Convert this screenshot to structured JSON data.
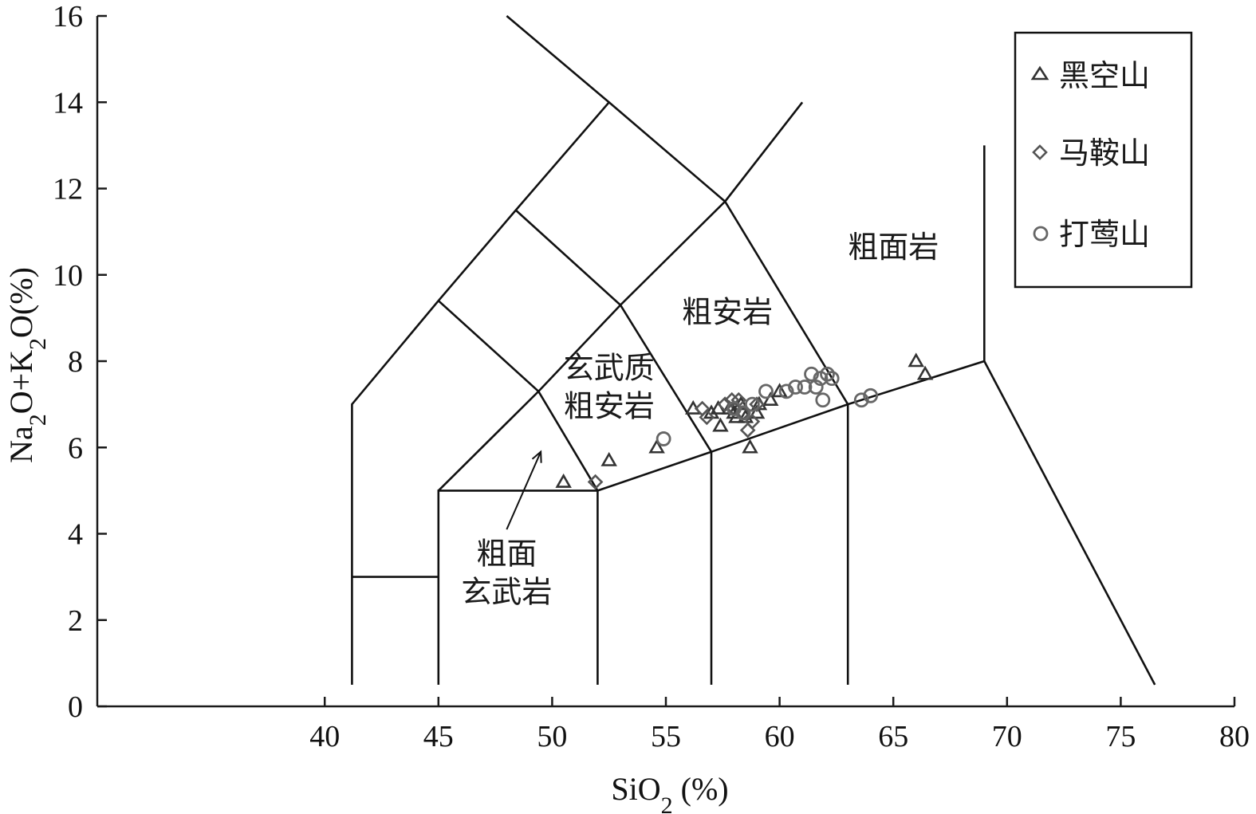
{
  "chart_data": {
    "type": "scatter",
    "xlabel_main": "SiO",
    "xlabel_sub": "2",
    "xlabel_tail": " (%)",
    "ylabel_parts": [
      "Na",
      "2",
      "O+K",
      "2",
      "O(%)"
    ],
    "xlim": [
      30,
      80
    ],
    "ylim": [
      0,
      16
    ],
    "xticks": [
      40,
      45,
      50,
      55,
      60,
      65,
      70,
      75,
      80
    ],
    "yticks": [
      0,
      2,
      4,
      6,
      8,
      10,
      12,
      14,
      16
    ],
    "grid": false,
    "legend_position": "top-right",
    "field_boundaries": [
      [
        [
          41.2,
          0.5
        ],
        [
          41.2,
          7.0
        ],
        [
          45.0,
          9.4
        ],
        [
          48.4,
          11.5
        ],
        [
          52.5,
          14.0
        ],
        [
          48.0,
          16.0
        ]
      ],
      [
        [
          41.2,
          3.0
        ],
        [
          45.0,
          3.0
        ]
      ],
      [
        [
          45.0,
          0.5
        ],
        [
          45.0,
          5.0
        ],
        [
          52.0,
          5.0
        ],
        [
          57.0,
          5.9
        ],
        [
          63.0,
          7.0
        ],
        [
          69.0,
          8.0
        ],
        [
          69.0,
          13.0
        ]
      ],
      [
        [
          52.0,
          0.5
        ],
        [
          52.0,
          5.0
        ]
      ],
      [
        [
          57.0,
          0.5
        ],
        [
          57.0,
          5.9
        ]
      ],
      [
        [
          63.0,
          0.5
        ],
        [
          63.0,
          7.0
        ]
      ],
      [
        [
          69.0,
          8.0
        ],
        [
          76.5,
          0.5
        ]
      ],
      [
        [
          45.0,
          5.0
        ],
        [
          49.4,
          7.3
        ],
        [
          53.0,
          9.3
        ],
        [
          57.6,
          11.7
        ],
        [
          61.0,
          14.0
        ]
      ],
      [
        [
          52.0,
          5.0
        ],
        [
          49.4,
          7.3
        ],
        [
          45.0,
          9.4
        ]
      ],
      [
        [
          57.0,
          5.9
        ],
        [
          53.0,
          9.3
        ],
        [
          48.4,
          11.5
        ]
      ],
      [
        [
          63.0,
          7.0
        ],
        [
          57.6,
          11.7
        ],
        [
          52.5,
          14.0
        ]
      ]
    ],
    "field_labels": [
      {
        "lines": [
          "玄武质",
          "粗安岩"
        ],
        "x": 52.5,
        "y": 7.6
      },
      {
        "lines": [
          "粗安岩"
        ],
        "x": 57.7,
        "y": 8.9
      },
      {
        "lines": [
          "粗面岩"
        ],
        "x": 65.0,
        "y": 10.4
      },
      {
        "lines": [
          "粗面",
          "玄武岩"
        ],
        "x": 48.0,
        "y": 3.3
      }
    ],
    "arrow": {
      "from": [
        48.0,
        4.1
      ],
      "to": [
        49.5,
        5.9
      ]
    },
    "series": [
      {
        "name": "黑空山",
        "marker": "triangle",
        "points": [
          [
            50.5,
            5.2
          ],
          [
            52.5,
            5.7
          ],
          [
            54.6,
            6.0
          ],
          [
            56.2,
            6.9
          ],
          [
            57.0,
            6.8
          ],
          [
            57.3,
            6.9
          ],
          [
            57.4,
            6.5
          ],
          [
            57.8,
            6.9
          ],
          [
            58.0,
            6.8
          ],
          [
            58.1,
            6.7
          ],
          [
            58.3,
            7.0
          ],
          [
            58.5,
            6.7
          ],
          [
            58.7,
            6.0
          ],
          [
            59.0,
            6.8
          ],
          [
            59.1,
            7.0
          ],
          [
            59.6,
            7.1
          ],
          [
            60.0,
            7.3
          ],
          [
            66.0,
            8.0
          ],
          [
            66.4,
            7.7
          ]
        ]
      },
      {
        "name": "马鞍山",
        "marker": "diamond",
        "points": [
          [
            51.9,
            5.2
          ],
          [
            56.6,
            6.9
          ],
          [
            56.8,
            6.7
          ],
          [
            57.6,
            7.0
          ],
          [
            57.9,
            7.1
          ],
          [
            58.0,
            6.9
          ],
          [
            58.2,
            7.1
          ],
          [
            58.4,
            6.8
          ],
          [
            58.6,
            6.4
          ],
          [
            58.8,
            6.6
          ],
          [
            59.0,
            7.0
          ]
        ]
      },
      {
        "name": "打莺山",
        "marker": "circle",
        "points": [
          [
            54.9,
            6.2
          ],
          [
            58.0,
            6.9
          ],
          [
            58.4,
            6.8
          ],
          [
            58.8,
            7.0
          ],
          [
            59.4,
            7.3
          ],
          [
            60.3,
            7.3
          ],
          [
            60.7,
            7.4
          ],
          [
            61.1,
            7.4
          ],
          [
            61.4,
            7.7
          ],
          [
            61.6,
            7.4
          ],
          [
            61.8,
            7.6
          ],
          [
            61.9,
            7.1
          ],
          [
            62.1,
            7.7
          ],
          [
            62.3,
            7.6
          ],
          [
            63.6,
            7.1
          ],
          [
            64.0,
            7.2
          ]
        ]
      }
    ]
  }
}
